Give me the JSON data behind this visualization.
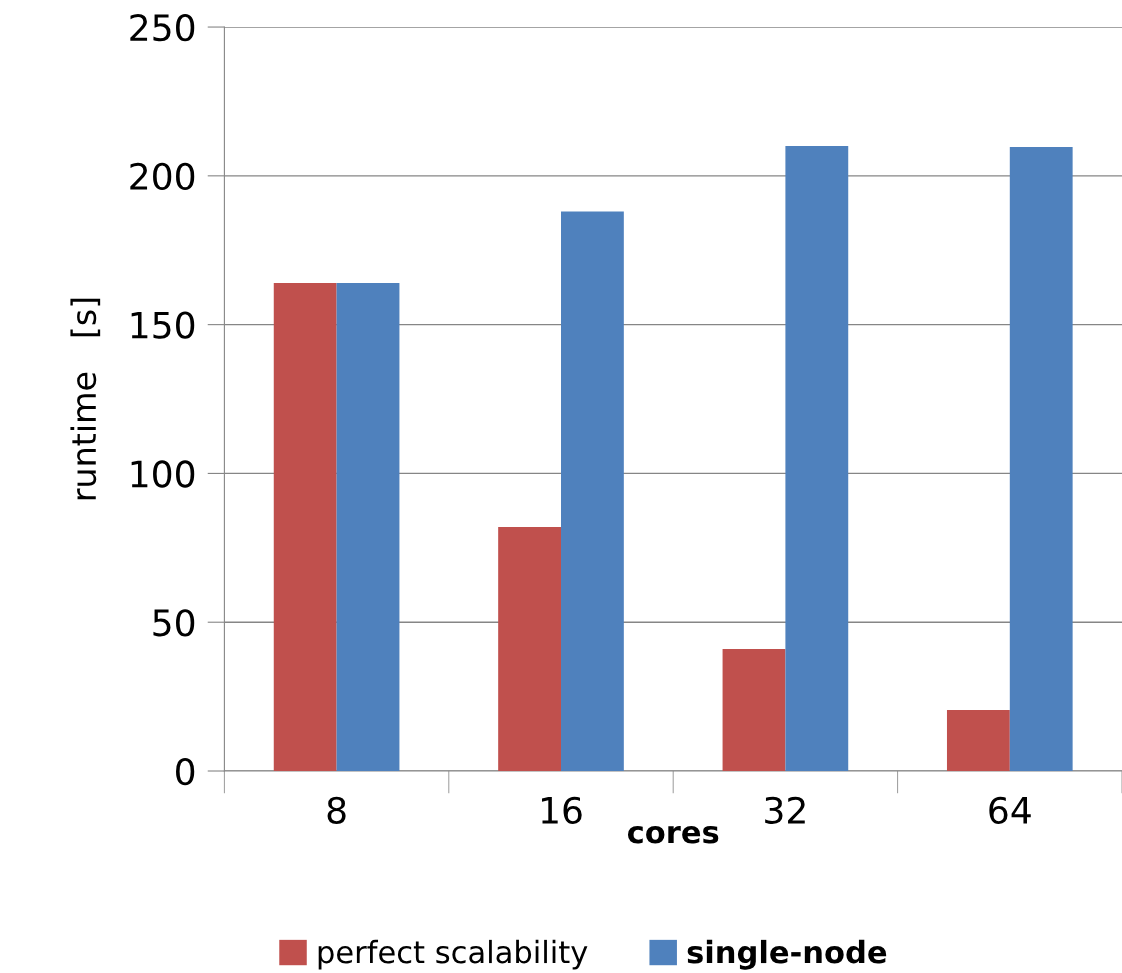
{
  "chart_data": {
    "type": "bar",
    "xlabel": "cores",
    "ylabel": "runtime   [s]",
    "categories": [
      "8",
      "16",
      "32",
      "64"
    ],
    "series": [
      {
        "name": "perfect scalability",
        "color": "#c0504d",
        "values": [
          164,
          82,
          41,
          20.5
        ]
      },
      {
        "name": "single-node",
        "color": "#4f81bd",
        "values": [
          164,
          188,
          210,
          209.7
        ]
      }
    ],
    "ylim": [
      0,
      250
    ],
    "yticks": [
      0,
      50,
      100,
      150,
      200,
      250
    ],
    "grid": "y",
    "legend": "bottom"
  }
}
